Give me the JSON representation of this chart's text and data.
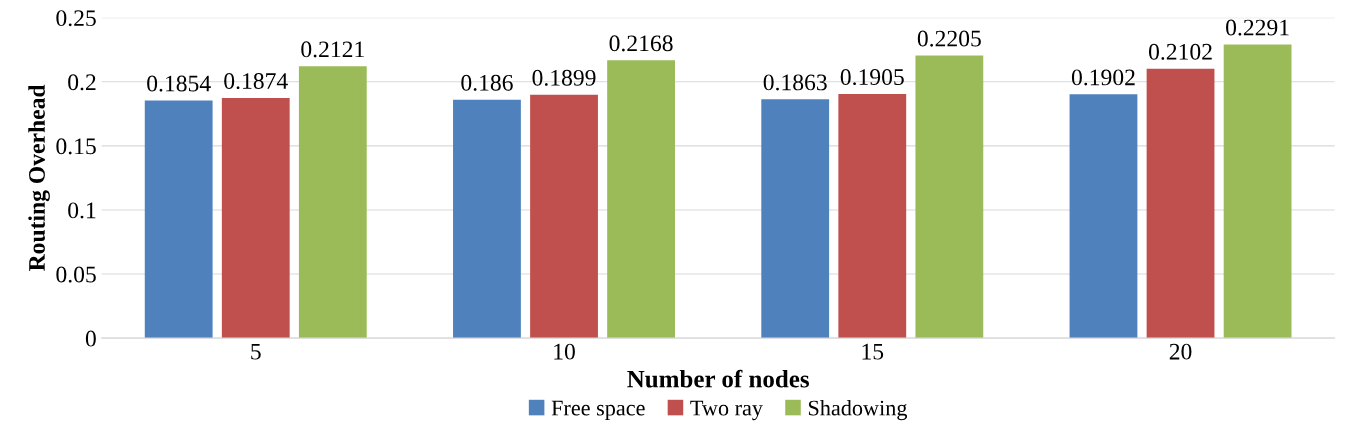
{
  "chart_data": {
    "type": "bar",
    "xlabel": "Number of nodes",
    "ylabel": "Routing Overhead",
    "categories": [
      "5",
      "10",
      "15",
      "20"
    ],
    "series": [
      {
        "name": "Free space",
        "color": "#4f81bd",
        "values": [
          0.1854,
          0.186,
          0.1863,
          0.1902
        ]
      },
      {
        "name": "Two ray",
        "color": "#c0504d",
        "values": [
          0.1874,
          0.1899,
          0.1905,
          0.2102
        ]
      },
      {
        "name": "Shadowing",
        "color": "#9bbb59",
        "values": [
          0.2121,
          0.2168,
          0.2205,
          0.2291
        ]
      }
    ],
    "ylim": [
      0,
      0.25
    ],
    "yticks": [
      0,
      0.05,
      0.1,
      0.15,
      0.2,
      0.25
    ],
    "grid": "y",
    "legend": "bottom",
    "data_labels": true
  }
}
